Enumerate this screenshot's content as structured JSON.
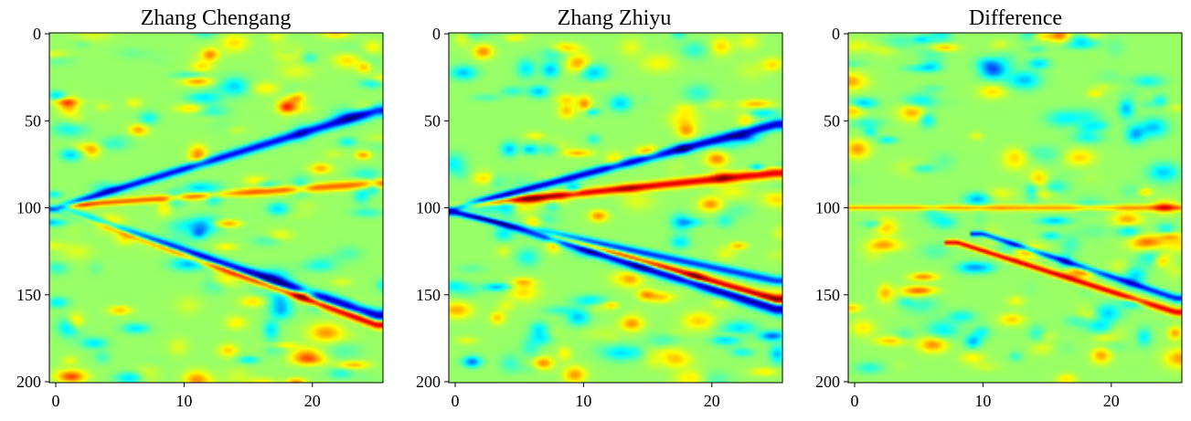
{
  "chart_data": [
    {
      "type": "heatmap",
      "title": "Zhang Chengang",
      "xlabel": "",
      "ylabel": "",
      "xlim": [
        -0.5,
        25.5
      ],
      "ylim": [
        200.5,
        -0.5
      ],
      "x_ticks": [
        0,
        10,
        20
      ],
      "y_ticks": [
        0,
        50,
        100,
        150,
        200
      ],
      "colormap": "jet",
      "colormap_colors": [
        "#00007f",
        "#0000ff",
        "#007fff",
        "#00ffff",
        "#7fff7f",
        "#ffff00",
        "#ff7f00",
        "#ff0000",
        "#7f0000"
      ],
      "background_value": 0.05,
      "features": [
        {
          "x": [
            0,
            25
          ],
          "y": [
            100,
            162
          ],
          "value": -0.95,
          "width": 2.4
        },
        {
          "x": [
            0,
            25
          ],
          "y": [
            100,
            167
          ],
          "value": 0.85,
          "width": 1.6
        },
        {
          "x": [
            0,
            25
          ],
          "y": [
            100,
            44
          ],
          "value": -0.8,
          "width": 2.2
        },
        {
          "x": [
            0,
            25
          ],
          "y": [
            99,
            86
          ],
          "value": 0.5,
          "width": 1.6
        }
      ]
    },
    {
      "type": "heatmap",
      "title": "Zhang Zhiyu",
      "xlabel": "",
      "ylabel": "",
      "xlim": [
        -0.5,
        25.5
      ],
      "ylim": [
        200.5,
        -0.5
      ],
      "x_ticks": [
        0,
        10,
        20
      ],
      "y_ticks": [
        0,
        50,
        100,
        150,
        200
      ],
      "colormap": "jet",
      "colormap_colors": [
        "#00007f",
        "#0000ff",
        "#007fff",
        "#00ffff",
        "#7fff7f",
        "#ffff00",
        "#ff7f00",
        "#ff0000",
        "#7f0000"
      ],
      "background_value": 0.05,
      "features": [
        {
          "x": [
            0,
            25
          ],
          "y": [
            100,
            158
          ],
          "value": -1.0,
          "width": 2.6
        },
        {
          "x": [
            0,
            25
          ],
          "y": [
            100,
            153
          ],
          "value": 0.95,
          "width": 1.6
        },
        {
          "x": [
            0,
            25
          ],
          "y": [
            100,
            52
          ],
          "value": -0.9,
          "width": 2.0
        },
        {
          "x": [
            0,
            25
          ],
          "y": [
            99,
            80
          ],
          "value": 0.75,
          "width": 1.8
        },
        {
          "x": [
            0,
            25
          ],
          "y": [
            103,
            142
          ],
          "value": -0.7,
          "width": 1.6
        }
      ]
    },
    {
      "type": "heatmap",
      "title": "Difference",
      "xlabel": "",
      "ylabel": "",
      "xlim": [
        -0.5,
        25.5
      ],
      "ylim": [
        200.5,
        -0.5
      ],
      "x_ticks": [
        0,
        10,
        20
      ],
      "y_ticks": [
        0,
        50,
        100,
        150,
        200
      ],
      "colormap": "jet",
      "colormap_colors": [
        "#00007f",
        "#0000ff",
        "#007fff",
        "#00ffff",
        "#7fff7f",
        "#ffff00",
        "#ff7f00",
        "#ff0000",
        "#7f0000"
      ],
      "background_value": 0.05,
      "features": [
        {
          "x": [
            8,
            25
          ],
          "y": [
            120,
            160
          ],
          "value": 0.75,
          "width": 1.2
        },
        {
          "x": [
            10,
            25
          ],
          "y": [
            115,
            152
          ],
          "value": -0.75,
          "width": 1.2
        },
        {
          "x": [
            0,
            25
          ],
          "y": [
            100,
            100
          ],
          "value": 0.4,
          "width": 0.8
        }
      ]
    }
  ]
}
